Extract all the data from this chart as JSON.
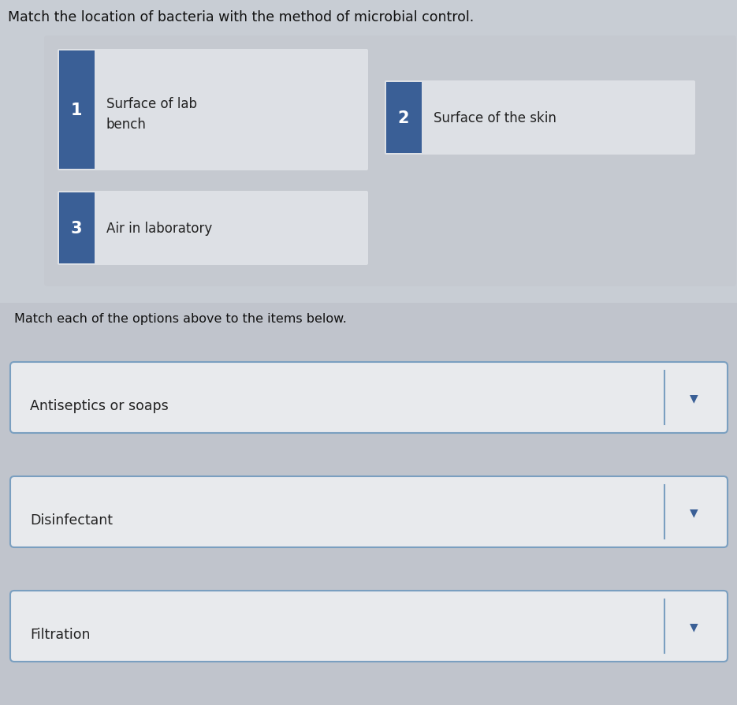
{
  "title": "Match the location of bacteria with the method of microbial control.",
  "title_fontsize": 12.5,
  "subtitle": "Match each of the options above to the items below.",
  "subtitle_fontsize": 11.5,
  "bg_color": "#c8cdd4",
  "upper_bg_color": "#c8cdd4",
  "lower_bg_color": "#c8cdd4",
  "card_bg": "#dde0e5",
  "blue_color": "#3a5f96",
  "dropdown_bg": "#e8eaed",
  "dropdown_border": "#7a9fc0",
  "arrow_color": "#3a5f96",
  "text_color": "#222222",
  "title_color": "#111111",
  "options": [
    {
      "number": "1",
      "text1": "Surface of lab",
      "text2": "bench",
      "col": 0
    },
    {
      "number": "2",
      "text1": "Surface of the skin",
      "text2": "",
      "col": 1
    },
    {
      "number": "3",
      "text1": "Air in laboratory",
      "text2": "",
      "col": 0
    }
  ],
  "items": [
    "Antiseptics or soaps",
    "Disinfectant",
    "Filtration"
  ]
}
